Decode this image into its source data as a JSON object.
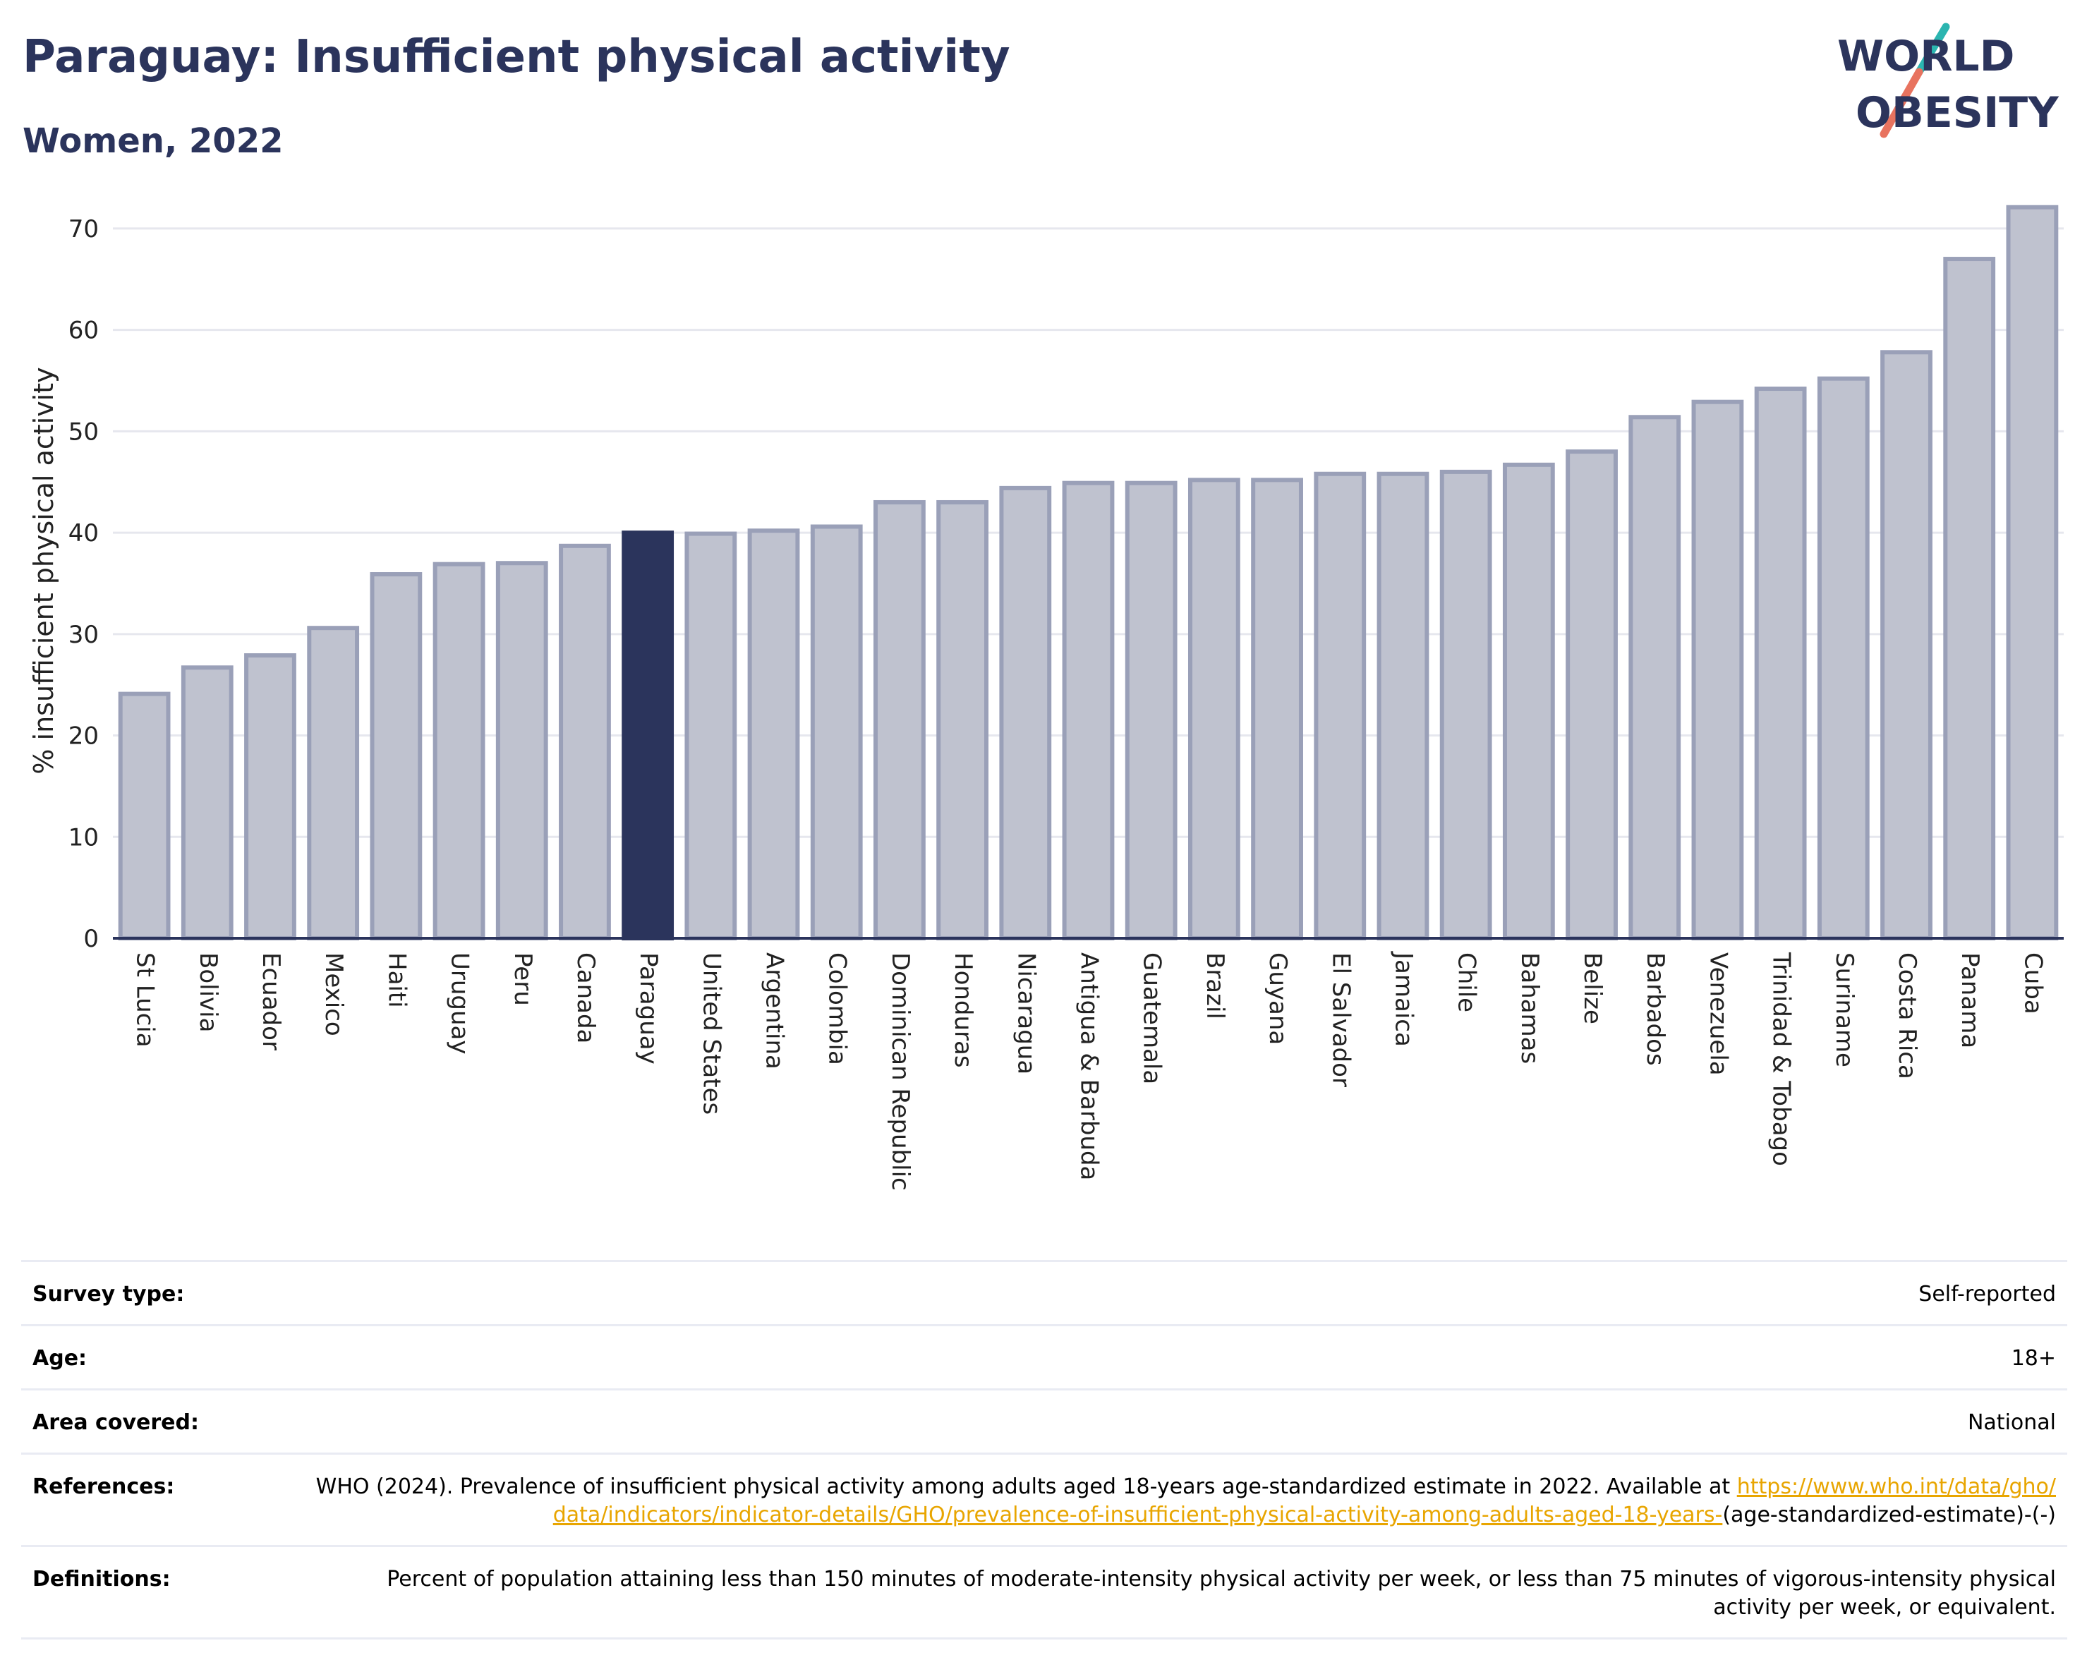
{
  "header": {
    "title": "Paraguay: Insufficient physical activity",
    "subtitle": "Women, 2022"
  },
  "logo": {
    "line1": "WORLD",
    "line2": "OBESITY",
    "colors": {
      "text": "#2b345c",
      "slash_teal": "#2bb5b0",
      "slash_coral": "#e8735f"
    }
  },
  "colors": {
    "highlight_bar": "#2b345c",
    "bar_fill": "#bfc2cf",
    "bar_stroke": "#9aa0b8",
    "grid": "#e6e7ee",
    "axis": "#2b345c",
    "link": "#e8a500"
  },
  "chart_data": {
    "type": "bar",
    "title": "",
    "xlabel": "",
    "ylabel": "% insufficient physical activity",
    "ylim": [
      0,
      72.5
    ],
    "yticks": [
      0,
      10,
      20,
      30,
      40,
      50,
      60,
      70
    ],
    "grid": true,
    "highlight": "Paraguay",
    "categories": [
      "St Lucia",
      "Bolivia",
      "Ecuador",
      "Mexico",
      "Haiti",
      "Uruguay",
      "Peru",
      "Canada",
      "Paraguay",
      "United States",
      "Argentina",
      "Colombia",
      "Dominican Republic",
      "Honduras",
      "Nicaragua",
      "Antigua & Barbuda",
      "Guatemala",
      "Brazil",
      "Guyana",
      "El Salvador",
      "Jamaica",
      "Chile",
      "Bahamas",
      "Belize",
      "Barbados",
      "Venezuela",
      "Trinidad & Tobago",
      "Suriname",
      "Costa Rica",
      "Panama",
      "Cuba"
    ],
    "values": [
      24.1,
      26.7,
      27.9,
      30.6,
      35.9,
      36.9,
      37.0,
      38.7,
      40.0,
      39.9,
      40.2,
      40.6,
      43.0,
      43.0,
      44.4,
      44.9,
      44.9,
      45.2,
      45.2,
      45.8,
      45.8,
      46.0,
      46.7,
      48.0,
      51.4,
      52.9,
      54.2,
      55.2,
      57.8,
      67.0,
      72.1
    ]
  },
  "meta": [
    {
      "label": "Survey type:",
      "value": "Self-reported"
    },
    {
      "label": "Age:",
      "value": "18+"
    },
    {
      "label": "Area covered:",
      "value": "National"
    },
    {
      "label": "References:",
      "value_pre": "WHO (2024). Prevalence of insufficient physical activity among adults aged 18-years age-standardized estimate in 2022. Available at",
      "link": "https://www.who.int/data/gho/data/indicators/indicator-details/GHO/prevalence-of-insufficient-physical-activity-among-adults-aged-18-years-",
      "value_post": "(age-standardized-estimate)-(-)"
    },
    {
      "label": "Definitions:",
      "value": "Percent of population attaining less than 150 minutes of moderate-intensity physical activity per week, or less than 75 minutes of vigorous-intensity physical activity per week, or equivalent."
    }
  ]
}
